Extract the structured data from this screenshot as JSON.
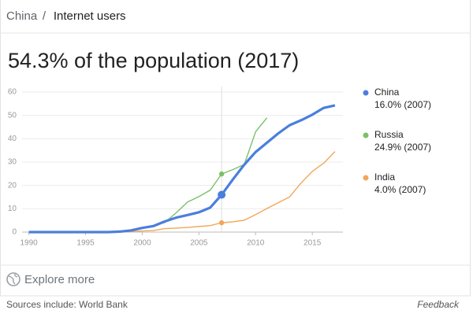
{
  "breadcrumb": [
    "China",
    "Internet users"
  ],
  "chart_data": {
    "type": "line",
    "title": "54.3% of the population (2017)",
    "x": [
      1990,
      1991,
      1992,
      1993,
      1994,
      1995,
      1996,
      1997,
      1998,
      1999,
      2000,
      2001,
      2002,
      2003,
      2004,
      2005,
      2006,
      2007,
      2008,
      2009,
      2010,
      2011,
      2012,
      2013,
      2014,
      2015,
      2016,
      2017
    ],
    "xlim": [
      1989.4,
      2017.7
    ],
    "xticks": [
      1990,
      1995,
      2000,
      2005,
      2010,
      2015
    ],
    "ylim": [
      0,
      60
    ],
    "yticks": [
      0,
      10,
      20,
      30,
      40,
      50,
      60
    ],
    "grid": true,
    "hover_x": 2007,
    "series": [
      {
        "name": "China",
        "color": "#4a7fdc",
        "width": 3.2,
        "values": [
          0,
          0,
          0,
          0,
          0,
          0,
          0,
          0,
          0.2,
          0.7,
          1.8,
          2.6,
          4.6,
          6.2,
          7.3,
          8.5,
          10.5,
          16.0,
          22.6,
          28.9,
          34.3,
          38.3,
          42.3,
          45.8,
          47.9,
          50.3,
          53.2,
          54.3
        ],
        "highlight": {
          "value": 16.0,
          "label": "16.0% (2007)"
        }
      },
      {
        "name": "Russia",
        "color": "#79c168",
        "width": 1.4,
        "values": [
          0,
          0,
          0,
          0,
          0,
          0,
          0,
          0,
          0.5,
          1.0,
          2.0,
          2.9,
          4.1,
          8.3,
          12.9,
          15.2,
          18.0,
          24.9,
          26.8,
          29.0,
          43.0,
          49.0,
          null,
          null,
          null,
          null,
          null,
          null
        ],
        "highlight": {
          "value": 24.9,
          "label": "24.9% (2007)"
        }
      },
      {
        "name": "India",
        "color": "#f2a65a",
        "width": 1.4,
        "values": [
          0,
          0,
          0,
          0,
          0,
          0,
          0,
          0,
          0,
          0.2,
          0.5,
          0.7,
          1.5,
          1.7,
          2.0,
          2.4,
          2.8,
          4.0,
          4.4,
          5.1,
          7.5,
          10.1,
          12.6,
          15.1,
          21.0,
          26.0,
          29.5,
          34.5
        ],
        "highlight": {
          "value": 4.0,
          "label": "4.0% (2007)"
        }
      }
    ]
  },
  "explore": "Explore more",
  "sources": "Sources include: World Bank",
  "feedback": "Feedback"
}
